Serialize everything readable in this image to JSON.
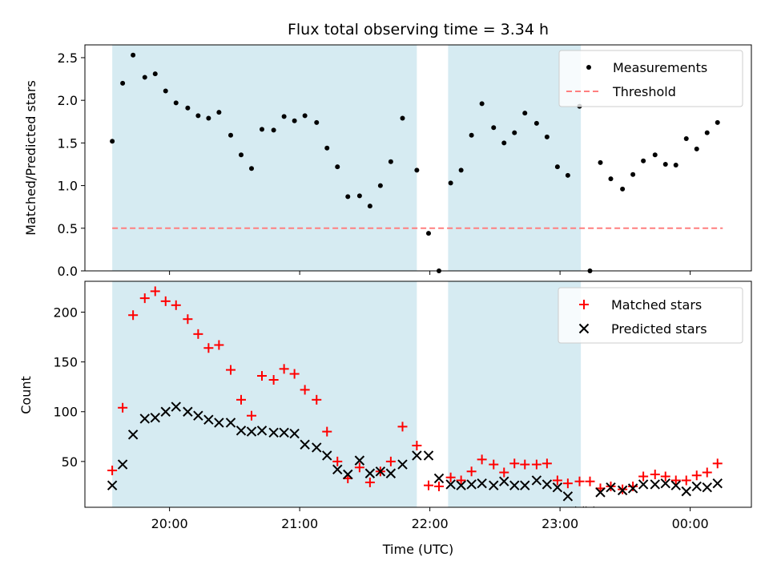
{
  "chart_data": {
    "title": "Flux total observing time = 3.34 h",
    "xlabel": "Time (UTC)",
    "x_unit": "hours since 00:00 UTC (negative = previous evening)",
    "x_ticks": [
      {
        "x": -4,
        "label": "20:00"
      },
      {
        "x": -3,
        "label": "21:00"
      },
      {
        "x": -2,
        "label": "22:00"
      },
      {
        "x": -1,
        "label": "23:00"
      },
      {
        "x": 0,
        "label": "00:00"
      }
    ],
    "xlim": [
      -4.65,
      0.47
    ],
    "shaded_spans": [
      [
        -4.44,
        -2.1
      ],
      [
        -1.86,
        -0.84
      ]
    ],
    "shade_color": "#add8e6",
    "top": {
      "type": "scatter",
      "ylabel": "Matched/Predicted stars",
      "ylim": [
        0,
        2.65
      ],
      "yticks": [
        "0.0",
        "0.5",
        "1.0",
        "1.5",
        "2.0",
        "2.5"
      ],
      "ytick_values": [
        0,
        0.5,
        1.0,
        1.5,
        2.0,
        2.5
      ],
      "legend": {
        "measurements": "Measurements",
        "threshold": "Threshold"
      },
      "threshold": {
        "value": 0.5,
        "x_range": [
          -4.44,
          0.25
        ],
        "color": "#ff7f7f"
      },
      "measurements": {
        "color": "#000000",
        "x": [
          -4.44,
          -4.36,
          -4.28,
          -4.19,
          -4.11,
          -4.03,
          -3.95,
          -3.86,
          -3.78,
          -3.7,
          -3.62,
          -3.53,
          -3.45,
          -3.37,
          -3.29,
          -3.2,
          -3.12,
          -3.04,
          -2.96,
          -2.87,
          -2.79,
          -2.71,
          -2.63,
          -2.54,
          -2.46,
          -2.38,
          -2.3,
          -2.21,
          -2.1,
          -2.01,
          -1.93,
          -1.84,
          -1.76,
          -1.68,
          -1.6,
          -1.51,
          -1.43,
          -1.35,
          -1.27,
          -1.18,
          -1.1,
          -1.02,
          -0.94,
          -0.85,
          -0.77,
          -0.69,
          -0.61,
          -0.52,
          -0.44,
          -0.36,
          -0.27,
          -0.19,
          -0.11,
          -0.03,
          0.05,
          0.13,
          0.21
        ],
        "y": [
          1.52,
          2.2,
          2.53,
          2.27,
          2.31,
          2.11,
          1.97,
          1.91,
          1.82,
          1.79,
          1.86,
          1.59,
          1.36,
          1.2,
          1.66,
          1.65,
          1.81,
          1.76,
          1.82,
          1.74,
          1.44,
          1.22,
          0.87,
          0.88,
          0.76,
          1.0,
          1.28,
          1.79,
          1.18,
          0.44,
          0.0,
          1.03,
          1.18,
          1.59,
          1.96,
          1.68,
          1.5,
          1.62,
          1.85,
          1.73,
          1.57,
          1.22,
          1.12,
          1.93,
          0.0,
          1.27,
          1.08,
          0.96,
          1.13,
          1.29,
          1.36,
          1.25,
          1.24,
          1.55,
          1.43,
          1.62,
          1.74
        ]
      }
    },
    "bottom": {
      "type": "scatter",
      "ylabel": "Count",
      "ylim": [
        4,
        231
      ],
      "yticks": [
        "50",
        "100",
        "150",
        "200"
      ],
      "ytick_values": [
        50,
        100,
        150,
        200
      ],
      "series": [
        {
          "name": "Matched stars",
          "marker": "plus",
          "color": "#ff0000",
          "x": [
            -4.44,
            -4.36,
            -4.28,
            -4.19,
            -4.11,
            -4.03,
            -3.95,
            -3.86,
            -3.78,
            -3.7,
            -3.62,
            -3.53,
            -3.45,
            -3.37,
            -3.29,
            -3.2,
            -3.12,
            -3.04,
            -2.96,
            -2.87,
            -2.79,
            -2.71,
            -2.63,
            -2.54,
            -2.46,
            -2.38,
            -2.3,
            -2.21,
            -2.1,
            -2.01,
            -1.93,
            -1.84,
            -1.76,
            -1.68,
            -1.6,
            -1.51,
            -1.43,
            -1.35,
            -1.27,
            -1.18,
            -1.1,
            -1.02,
            -0.94,
            -0.85,
            -0.77,
            -0.69,
            -0.61,
            -0.52,
            -0.44,
            -0.36,
            -0.27,
            -0.19,
            -0.11,
            -0.03,
            0.05,
            0.13,
            0.21
          ],
          "y": [
            41,
            104,
            197,
            214,
            221,
            211,
            207,
            193,
            178,
            164,
            167,
            142,
            112,
            96,
            136,
            132,
            143,
            138,
            122,
            112,
            80,
            50,
            33,
            44,
            29,
            40,
            50,
            85,
            66,
            26,
            25,
            34,
            31,
            40,
            52,
            47,
            39,
            48,
            47,
            47,
            48,
            31,
            28,
            30,
            30,
            23,
            25,
            22,
            25,
            35,
            37,
            35,
            31,
            31,
            36,
            39,
            48
          ]
        },
        {
          "name": "Predicted stars",
          "marker": "x",
          "color": "#000000",
          "x": [
            -4.44,
            -4.36,
            -4.28,
            -4.19,
            -4.11,
            -4.03,
            -3.95,
            -3.86,
            -3.78,
            -3.7,
            -3.62,
            -3.53,
            -3.45,
            -3.37,
            -3.29,
            -3.2,
            -3.12,
            -3.04,
            -2.96,
            -2.87,
            -2.79,
            -2.71,
            -2.63,
            -2.54,
            -2.46,
            -2.38,
            -2.3,
            -2.21,
            -2.1,
            -2.01,
            -1.93,
            -1.84,
            -1.76,
            -1.68,
            -1.6,
            -1.51,
            -1.43,
            -1.35,
            -1.27,
            -1.18,
            -1.1,
            -1.02,
            -0.94,
            -0.85,
            -0.77,
            -0.69,
            -0.61,
            -0.52,
            -0.44,
            -0.36,
            -0.27,
            -0.19,
            -0.11,
            -0.03,
            0.05,
            0.13,
            0.21
          ],
          "y": [
            26,
            47,
            77,
            93,
            94,
            100,
            105,
            100,
            96,
            92,
            89,
            89,
            81,
            80,
            81,
            79,
            79,
            78,
            67,
            64,
            56,
            42,
            37,
            51,
            38,
            40,
            38,
            47,
            56,
            56,
            33,
            27,
            26,
            27,
            28,
            26,
            30,
            26,
            26,
            31,
            27,
            24,
            15,
            0,
            0,
            19,
            24,
            21,
            23,
            27,
            27,
            28,
            26,
            20,
            25,
            24,
            28
          ]
        }
      ]
    }
  }
}
